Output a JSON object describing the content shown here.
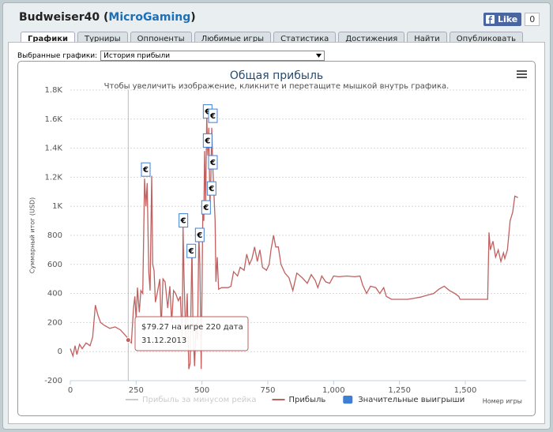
{
  "header": {
    "user": "Budweiser40",
    "network_open": "(",
    "network": "MicroGaming",
    "network_close": ")",
    "like": "Like",
    "like_count": "0"
  },
  "tabs": [
    "Графики",
    "Турниры",
    "Оппоненты",
    "Любимые игры",
    "Статистика",
    "Достижения",
    "Найти",
    "Опубликовать"
  ],
  "selector": {
    "label": "Выбранные графики:",
    "value": "История прибыли"
  },
  "chart_data": {
    "type": "line",
    "title": "Общая прибыль",
    "subtitle": "Чтобы увеличить изображение, кликните и перетащите мышкой внутрь графика.",
    "ylabel": "Суммарный итог (USD)",
    "xlabel": "Номер игры",
    "xlim": [
      0,
      1731
    ],
    "ylim": [
      -200,
      1800
    ],
    "xticks": [
      0,
      250,
      500,
      750,
      {
        "value": 1000,
        "label": "1,000"
      },
      {
        "value": 1250,
        "label": "1,250"
      },
      {
        "value": 1500,
        "label": "1,500"
      }
    ],
    "yticks": [
      -200,
      0,
      200,
      400,
      600,
      800,
      {
        "value": 1000,
        "label": "1K"
      },
      {
        "value": 1200,
        "label": "1.2K"
      },
      {
        "value": 1400,
        "label": "1.4K"
      },
      {
        "value": 1600,
        "label": "1.6K"
      },
      {
        "value": 1800,
        "label": "1.8K"
      }
    ],
    "grid": true,
    "series": [
      {
        "name": "Прибыль за минусом рейка",
        "color": "#cccccc",
        "visible": false
      },
      {
        "name": "Прибыль",
        "color": "#c0605f",
        "x": [
          0,
          10,
          18,
          25,
          35,
          45,
          60,
          75,
          85,
          95,
          105,
          115,
          130,
          150,
          170,
          190,
          205,
          215,
          220,
          232,
          240,
          245,
          250,
          255,
          262,
          268,
          275,
          282,
          287,
          292,
          298,
          303,
          309,
          313,
          318,
          323,
          330,
          340,
          345,
          352,
          360,
          370,
          378,
          385,
          392,
          400,
          410,
          418,
          425,
          428,
          432,
          438,
          444,
          450,
          455,
          458,
          462,
          466,
          472,
          478,
          483,
          488,
          492,
          497,
          503,
          507,
          510,
          514,
          518,
          522,
          526,
          530,
          534,
          537,
          541,
          545,
          550,
          553,
          558,
          563,
          575,
          600,
          610,
          620,
          635,
          645,
          660,
          670,
          680,
          690,
          700,
          710,
          720,
          730,
          745,
          755,
          762,
          772,
          780,
          790,
          800,
          815,
          830,
          845,
          860,
          880,
          900,
          915,
          930,
          940,
          955,
          970,
          985,
          1000,
          1020,
          1050,
          1080,
          1100,
          1110,
          1125,
          1140,
          1160,
          1175,
          1190,
          1200,
          1220,
          1250,
          1280,
          1300,
          1330,
          1360,
          1380,
          1400,
          1420,
          1440,
          1460,
          1475,
          1480,
          1585,
          1590,
          1595,
          1605,
          1615,
          1625,
          1635,
          1645,
          1650,
          1660,
          1670,
          1680,
          1688,
          1700
        ],
        "values": [
          20,
          -30,
          40,
          -20,
          50,
          20,
          60,
          40,
          100,
          320,
          250,
          200,
          180,
          160,
          170,
          150,
          120,
          100,
          79.27,
          60,
          300,
          380,
          220,
          440,
          270,
          420,
          400,
          1190,
          1000,
          1160,
          550,
          420,
          1210,
          600,
          560,
          340,
          400,
          500,
          150,
          500,
          480,
          300,
          450,
          200,
          420,
          400,
          350,
          380,
          60,
          860,
          500,
          100,
          400,
          -120,
          -80,
          300,
          720,
          150,
          -100,
          200,
          80,
          800,
          600,
          -120,
          950,
          900,
          1380,
          1000,
          1620,
          1350,
          1540,
          1000,
          1200,
          1540,
          1280,
          1100,
          900,
          480,
          650,
          430,
          440,
          440,
          450,
          550,
          520,
          580,
          560,
          670,
          600,
          640,
          720,
          620,
          700,
          580,
          560,
          600,
          700,
          800,
          720,
          720,
          600,
          540,
          510,
          420,
          540,
          510,
          470,
          530,
          490,
          440,
          520,
          480,
          470,
          520,
          515,
          520,
          515,
          520,
          460,
          400,
          450,
          440,
          400,
          440,
          380,
          360,
          360,
          360,
          365,
          375,
          390,
          400,
          430,
          450,
          420,
          400,
          380,
          360,
          360,
          820,
          700,
          760,
          650,
          700,
          620,
          680,
          640,
          700,
          900,
          960,
          1070,
          1060
        ]
      },
      {
        "name": "Значительные выигрыши",
        "color": "#3d7fd4",
        "marker_label": "€",
        "x": [
          285,
          428,
          458,
          490,
          514,
          520,
          520,
          540,
          535,
          540
        ],
        "values": [
          1250,
          900,
          690,
          800,
          990,
          1450,
          1650,
          1620,
          1120,
          1300
        ]
      }
    ],
    "tooltip": {
      "x": 220,
      "value": 79.27,
      "lines": [
        "$79.27 на игре 220 дата",
        "31.12.2013"
      ]
    }
  }
}
